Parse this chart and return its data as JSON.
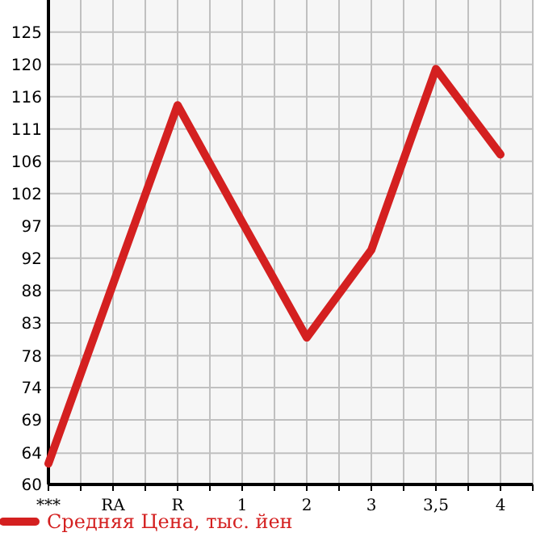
{
  "chart_data": {
    "type": "line",
    "categories": [
      "***",
      "RA",
      "R",
      "1",
      "2",
      "3",
      "3,5",
      "4"
    ],
    "series": [
      {
        "name": "Средняя Цена, тыс. йен",
        "color": "#d42020",
        "values": [
          63.0,
          88.8,
          114.5,
          97.7,
          81.1,
          93.7,
          119.7,
          107.4
        ]
      }
    ],
    "ylim": [
      60,
      129.6
    ],
    "yticks": [
      60,
      {
        "value": 64.49,
        "label": "64"
      },
      {
        "value": 69.29,
        "label": "69"
      },
      {
        "value": 73.93,
        "label": "74"
      },
      {
        "value": 78.49,
        "label": "78"
      },
      {
        "value": 83.21,
        "label": "83"
      },
      {
        "value": 87.86,
        "label": "88"
      },
      {
        "value": 92.5,
        "label": "92"
      },
      {
        "value": 97.14,
        "label": "97"
      },
      {
        "value": 101.79,
        "label": "102"
      },
      {
        "value": 106.43,
        "label": "106"
      },
      {
        "value": 111.07,
        "label": "111"
      },
      {
        "value": 115.71,
        "label": "116"
      },
      {
        "value": 120.36,
        "label": "120"
      },
      125
    ],
    "grid": true,
    "legend": "bottom left",
    "marker": "none",
    "line_style": "solid"
  }
}
